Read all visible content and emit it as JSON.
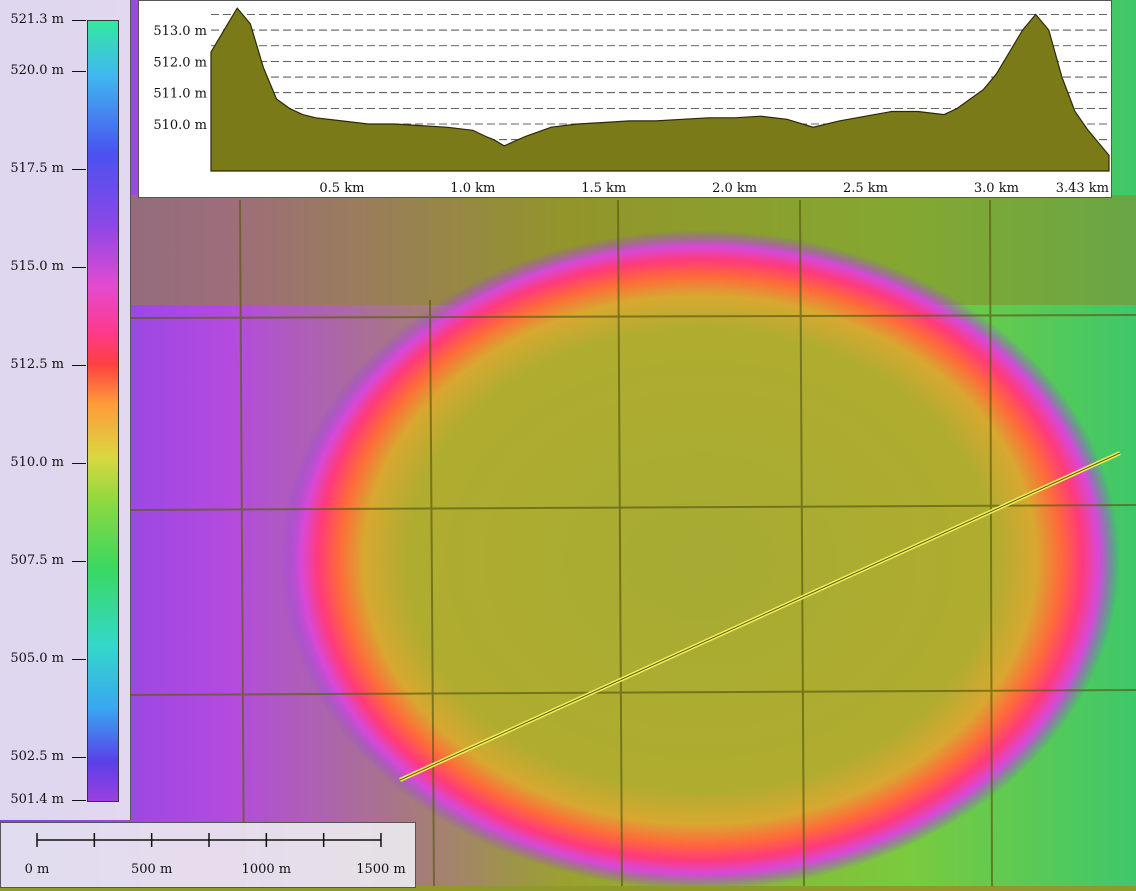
{
  "map": {
    "background_colors": {
      "field": "#a9ad35",
      "rim_red": "#ff4040",
      "rim_magenta": "#e24ad0",
      "outside_green": "#3cc85a"
    },
    "transect_color": "#f2ee5a"
  },
  "legend": {
    "labels": [
      "521.3 m",
      "520.0 m",
      "517.5 m",
      "515.0 m",
      "512.5 m",
      "510.0 m",
      "507.5 m",
      "505.0 m",
      "502.5 m",
      "501.4 m"
    ],
    "values": [
      521.3,
      520.0,
      517.5,
      515.0,
      512.5,
      510.0,
      507.5,
      505.0,
      502.5,
      501.4
    ],
    "min": 501.4,
    "max": 521.3
  },
  "profile": {
    "y_labels": [
      "513.0 m",
      "512.0 m",
      "511.0 m",
      "510.0 m"
    ],
    "x_labels": [
      "0.5 km",
      "1.0 km",
      "1.5 km",
      "2.0 km",
      "2.5 km",
      "3.0 km",
      "3.43 km"
    ],
    "fill_color": "#7a7a18",
    "chart_data": {
      "type": "area",
      "xlabel": "",
      "ylabel": "",
      "x_unit": "km",
      "y_unit": "m",
      "xlim": [
        0,
        3.43
      ],
      "ylim": [
        508.5,
        513.8
      ],
      "y_ticks": [
        510.0,
        511.0,
        512.0,
        513.0
      ],
      "x_ticks": [
        0.5,
        1.0,
        1.5,
        2.0,
        2.5,
        3.0,
        3.43
      ],
      "grid": "horizontal dashed",
      "x": [
        0.0,
        0.05,
        0.1,
        0.15,
        0.2,
        0.25,
        0.3,
        0.35,
        0.4,
        0.5,
        0.6,
        0.7,
        0.8,
        0.9,
        1.0,
        1.05,
        1.08,
        1.12,
        1.2,
        1.3,
        1.4,
        1.5,
        1.6,
        1.7,
        1.8,
        1.9,
        2.0,
        2.1,
        2.2,
        2.3,
        2.4,
        2.5,
        2.6,
        2.7,
        2.8,
        2.85,
        2.9,
        2.95,
        3.0,
        3.05,
        3.1,
        3.15,
        3.2,
        3.25,
        3.3,
        3.35,
        3.43
      ],
      "y": [
        512.3,
        513.0,
        513.7,
        513.2,
        511.8,
        510.8,
        510.5,
        510.3,
        510.2,
        510.1,
        510.0,
        510.0,
        509.95,
        509.9,
        509.8,
        509.6,
        509.5,
        509.3,
        509.6,
        509.9,
        510.0,
        510.05,
        510.1,
        510.1,
        510.15,
        510.2,
        510.2,
        510.25,
        510.15,
        509.9,
        510.1,
        510.25,
        510.4,
        510.4,
        510.3,
        510.5,
        510.8,
        511.1,
        511.6,
        512.3,
        513.0,
        513.5,
        513.0,
        511.5,
        510.4,
        509.8,
        509.0
      ]
    }
  },
  "scale_bar": {
    "labels": [
      "0 m",
      "500 m",
      "1000 m",
      "1500 m"
    ]
  }
}
